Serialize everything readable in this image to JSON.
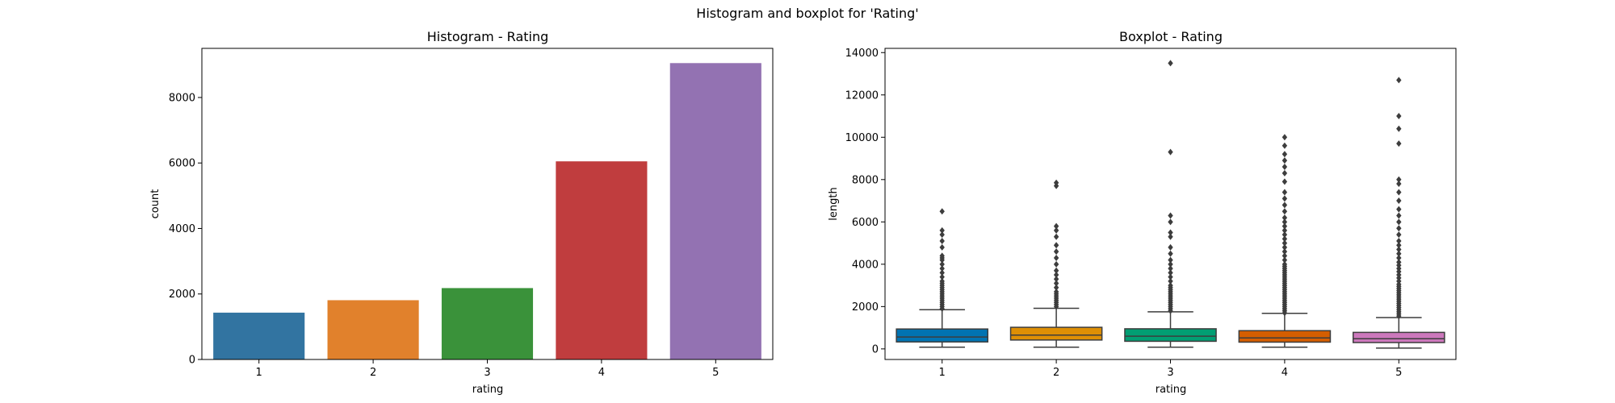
{
  "figure": {
    "title": "Histogram and boxplot for 'Rating'"
  },
  "chart_data": [
    {
      "type": "bar",
      "title": "Histogram - Rating",
      "xlabel": "rating",
      "ylabel": "count",
      "categories": [
        "1",
        "2",
        "3",
        "4",
        "5"
      ],
      "values": [
        1430,
        1810,
        2180,
        6050,
        9050
      ],
      "colors": [
        "#3274a1",
        "#e1812c",
        "#3a923a",
        "#c03d3e",
        "#9372b2"
      ],
      "ylim": [
        0,
        9500
      ],
      "yticks": [
        0,
        2000,
        4000,
        6000,
        8000
      ],
      "ytick_labels": [
        "0",
        "2000",
        "4000",
        "6000",
        "8000"
      ],
      "grid": false,
      "legend": "none"
    },
    {
      "type": "box",
      "title": "Boxplot - Rating",
      "xlabel": "rating",
      "ylabel": "length",
      "categories": [
        "1",
        "2",
        "3",
        "4",
        "5"
      ],
      "colors": [
        "#0173b2",
        "#de8f05",
        "#029e73",
        "#d55e00",
        "#cc78bc"
      ],
      "ylim": [
        -500,
        14200
      ],
      "yticks": [
        0,
        2000,
        4000,
        6000,
        8000,
        10000,
        12000,
        14000
      ],
      "ytick_labels": [
        "0",
        "2000",
        "4000",
        "6000",
        "8000",
        "10000",
        "12000",
        "14000"
      ],
      "grid": false,
      "legend": "none",
      "boxes": [
        {
          "category": "1",
          "whisker_low": 80,
          "q1": 330,
          "median": 560,
          "q3": 940,
          "whisker_high": 1850,
          "outliers": [
            1900,
            2000,
            2100,
            2200,
            2300,
            2400,
            2500,
            2600,
            2700,
            2800,
            2900,
            3000,
            3100,
            3200,
            3400,
            3600,
            3800,
            4000,
            4200,
            4300,
            4400,
            4800,
            5100,
            5400,
            5600,
            6500
          ]
        },
        {
          "category": "2",
          "whisker_low": 80,
          "q1": 420,
          "median": 650,
          "q3": 1020,
          "whisker_high": 1920,
          "outliers": [
            2000,
            2100,
            2200,
            2300,
            2400,
            2500,
            2600,
            2700,
            2900,
            3100,
            3300,
            3500,
            3700,
            4000,
            4300,
            4600,
            4900,
            5300,
            5600,
            5800,
            7700,
            7850
          ]
        },
        {
          "category": "3",
          "whisker_low": 80,
          "q1": 360,
          "median": 600,
          "q3": 950,
          "whisker_high": 1750,
          "outliers": [
            1800,
            1900,
            2000,
            2100,
            2200,
            2300,
            2400,
            2500,
            2600,
            2700,
            2800,
            2900,
            3000,
            3200,
            3400,
            3600,
            3800,
            4000,
            4200,
            4500,
            4800,
            5300,
            5500,
            6000,
            6300,
            9300,
            13500
          ]
        },
        {
          "category": "4",
          "whisker_low": 80,
          "q1": 320,
          "median": 520,
          "q3": 860,
          "whisker_high": 1680,
          "outliers": [
            1700,
            1800,
            1900,
            2000,
            2100,
            2200,
            2300,
            2400,
            2500,
            2600,
            2700,
            2800,
            2900,
            3000,
            3100,
            3200,
            3300,
            3400,
            3500,
            3600,
            3700,
            3800,
            3900,
            4000,
            4200,
            4400,
            4600,
            4800,
            5000,
            5200,
            5400,
            5600,
            5800,
            6000,
            6200,
            6500,
            6800,
            7100,
            7400,
            7900,
            8300,
            8600,
            8900,
            9200,
            9600,
            10000
          ]
        },
        {
          "category": "5",
          "whisker_low": 40,
          "q1": 300,
          "median": 480,
          "q3": 780,
          "whisker_high": 1480,
          "outliers": [
            1550,
            1650,
            1750,
            1850,
            1950,
            2050,
            2150,
            2250,
            2350,
            2450,
            2550,
            2650,
            2750,
            2850,
            2950,
            3050,
            3200,
            3350,
            3500,
            3650,
            3800,
            3950,
            4100,
            4300,
            4500,
            4700,
            4900,
            5100,
            5400,
            5700,
            6000,
            6300,
            6600,
            7000,
            7400,
            7800,
            8000,
            9700,
            10400,
            11000,
            12700
          ]
        }
      ]
    }
  ]
}
